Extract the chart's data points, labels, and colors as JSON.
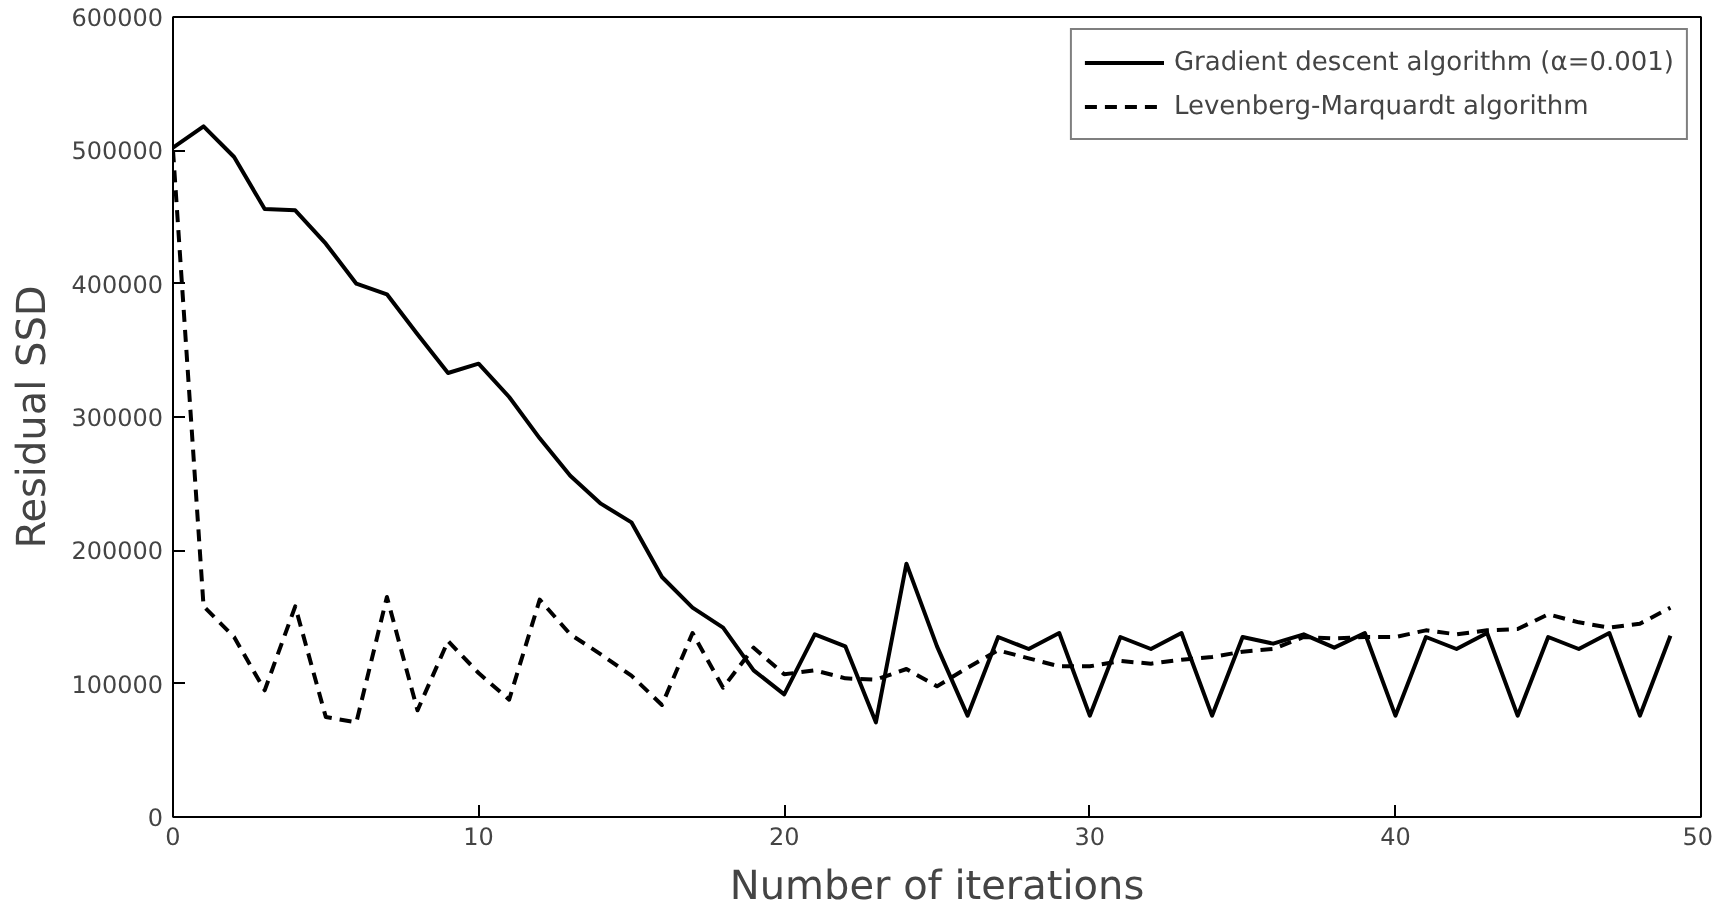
{
  "chart_data": {
    "type": "line",
    "xlabel": "Number of iterations",
    "ylabel": "Residual SSD",
    "x": [
      0,
      1,
      2,
      3,
      4,
      5,
      6,
      7,
      8,
      9,
      10,
      11,
      12,
      13,
      14,
      15,
      16,
      17,
      18,
      19,
      20,
      21,
      22,
      23,
      24,
      25,
      26,
      27,
      28,
      29,
      30,
      31,
      32,
      33,
      34,
      35,
      36,
      37,
      38,
      39,
      40,
      41,
      42,
      43,
      44,
      45,
      46,
      47,
      48,
      49
    ],
    "series": [
      {
        "name": "Gradient descent algorithm (α=0.001)",
        "color": "#000000",
        "line_style": "solid",
        "values": [
          502000,
          518000,
          495000,
          456000,
          455000,
          430000,
          400000,
          392000,
          362000,
          333000,
          340000,
          315000,
          284000,
          256000,
          235000,
          221000,
          180000,
          157000,
          142000,
          110000,
          92000,
          137000,
          128000,
          71000,
          190000,
          128000,
          76000,
          135000,
          126000,
          138000,
          76000,
          135000,
          126000,
          138000,
          76000,
          135000,
          130000,
          137000,
          127000,
          138000,
          76000,
          135000,
          126000,
          138000,
          76000,
          135000,
          126000,
          138000,
          76000,
          136000
        ]
      },
      {
        "name": "Levenberg-Marquardt algorithm",
        "color": "#000000",
        "line_style": "dashed",
        "values": [
          500000,
          158000,
          135000,
          95000,
          158000,
          75000,
          71000,
          165000,
          80000,
          132000,
          108000,
          88000,
          163000,
          137000,
          122000,
          106000,
          84000,
          138000,
          97000,
          127000,
          107000,
          110000,
          104000,
          103000,
          111000,
          98000,
          112000,
          125000,
          119000,
          113000,
          113000,
          117000,
          115000,
          118000,
          120000,
          124000,
          126000,
          135000,
          134000,
          135000,
          135000,
          140000,
          137000,
          140000,
          141000,
          152000,
          146000,
          142000,
          145000,
          157000
        ]
      }
    ],
    "xlim": [
      0,
      50
    ],
    "xticks": [
      0,
      10,
      20,
      30,
      40,
      50
    ],
    "ylim": [
      0,
      600000
    ],
    "yticks": [
      0,
      100000,
      200000,
      300000,
      400000,
      500000,
      600000
    ],
    "grid": false,
    "legend": "top right",
    "marker": "none"
  }
}
